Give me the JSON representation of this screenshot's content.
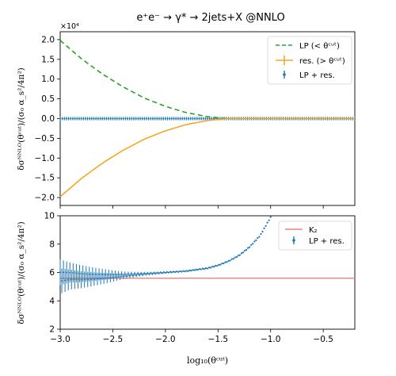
{
  "figure": {
    "title": "e⁺e⁻ → γ* → 2jets+X @NNLO",
    "xlabel": "log₁₀(θᶜᵘᵗ)",
    "top_ylabel": "δσᴺᴺᴸᴼ(θᶜᵘᵗ)/(σ₀ α_s²/4π²)",
    "bottom_ylabel": "δσᴺᴺᴸᴼ(θᶜᵘᵗ)/(σ₀ α_s²/4π²)",
    "offset_text": "×10⁴"
  },
  "chart_data": [
    {
      "type": "line",
      "title": "e⁺e⁻ → γ* → 2jets+X @NNLO",
      "ylabel": "δσᴺᴺᴸᴼ(θᶜᵘᵗ)/(σ₀ α_s²/4π²)",
      "y_scale_note": "×10⁴",
      "xlim": [
        -3.0,
        -0.2
      ],
      "ylim": [
        -2.2,
        2.2
      ],
      "x_ticks": [
        -3.0,
        -2.5,
        -2.0,
        -1.5,
        -1.0,
        -0.5
      ],
      "y_ticks": [
        -2.0,
        -1.5,
        -1.0,
        -0.5,
        0.0,
        0.5,
        1.0,
        1.5,
        2.0
      ],
      "y_tick_labels": [
        "−2.0",
        "−1.5",
        "−1.0",
        "−0.5",
        "0.0",
        "0.5",
        "1.0",
        "1.5",
        "2.0"
      ],
      "legend_position": "top-right",
      "grid": false,
      "x": [
        -3.0,
        -2.8,
        -2.6,
        -2.4,
        -2.2,
        -2.0,
        -1.8,
        -1.6,
        -1.5,
        -1.4,
        -1.2,
        -1.0,
        -0.8,
        -0.6,
        -0.4,
        -0.2
      ],
      "series": [
        {
          "name": "LP (< θᶜᵘᵗ)",
          "style": "dashed",
          "color": "#2ca02c",
          "values": [
            1.98,
            1.52,
            1.13,
            0.8,
            0.52,
            0.31,
            0.15,
            0.05,
            0.02,
            0.0,
            0.0,
            0.0,
            0.0,
            0.0,
            0.0,
            0.0
          ]
        },
        {
          "name": "res. (> θᶜᵘᵗ)",
          "style": "solid",
          "color": "#f5a623",
          "values": [
            -1.98,
            -1.52,
            -1.13,
            -0.8,
            -0.52,
            -0.31,
            -0.15,
            -0.05,
            -0.02,
            0.0,
            0.0,
            0.0,
            0.0,
            0.0,
            0.0,
            0.0
          ]
        },
        {
          "name": "LP + res.",
          "style": "points",
          "color": "#1f77b4",
          "values": [
            0.0,
            0.0,
            0.0,
            0.0,
            0.0,
            0.0,
            0.0,
            0.0,
            0.0,
            0.0,
            0.0,
            0.0,
            0.0,
            0.0,
            0.0,
            0.0
          ]
        }
      ]
    },
    {
      "type": "scatter",
      "xlabel": "log₁₀(θᶜᵘᵗ)",
      "ylabel": "δσᴺᴺᴸᴼ(θᶜᵘᵗ)/(σ₀ α_s²/4π²)",
      "xlim": [
        -3.0,
        -0.2
      ],
      "ylim": [
        2,
        10
      ],
      "x_ticks": [
        -3.0,
        -2.5,
        -2.0,
        -1.5,
        -1.0,
        -0.5
      ],
      "x_tick_labels": [
        "−3.0",
        "−2.5",
        "−2.0",
        "−1.5",
        "−1.0",
        "−0.5"
      ],
      "y_ticks": [
        2,
        4,
        6,
        8,
        10
      ],
      "legend_position": "top-right",
      "grid": false,
      "series": [
        {
          "name": "K₂",
          "style": "hline",
          "color": "#f08080",
          "value": 5.6
        },
        {
          "name": "LP + res.",
          "style": "errorbar",
          "color": "#1f77b4",
          "x": [
            -3.0,
            -2.9,
            -2.8,
            -2.7,
            -2.6,
            -2.5,
            -2.4,
            -2.3,
            -2.2,
            -2.1,
            -2.0,
            -1.9,
            -1.8,
            -1.7,
            -1.6,
            -1.5,
            -1.4,
            -1.3,
            -1.2,
            -1.1,
            -1.0
          ],
          "y": [
            5.7,
            5.75,
            5.7,
            5.7,
            5.72,
            5.75,
            5.8,
            5.85,
            5.9,
            5.95,
            6.0,
            6.05,
            6.1,
            6.2,
            6.3,
            6.5,
            6.8,
            7.2,
            7.8,
            8.6,
            9.9
          ],
          "err": [
            0.9,
            0.7,
            0.6,
            0.5,
            0.4,
            0.3,
            0.2,
            0.15,
            0.1,
            0.08,
            0.06,
            0.05,
            0.05,
            0.05,
            0.05,
            0.05,
            0.05,
            0.05,
            0.05,
            0.05,
            0.05
          ]
        }
      ]
    }
  ]
}
